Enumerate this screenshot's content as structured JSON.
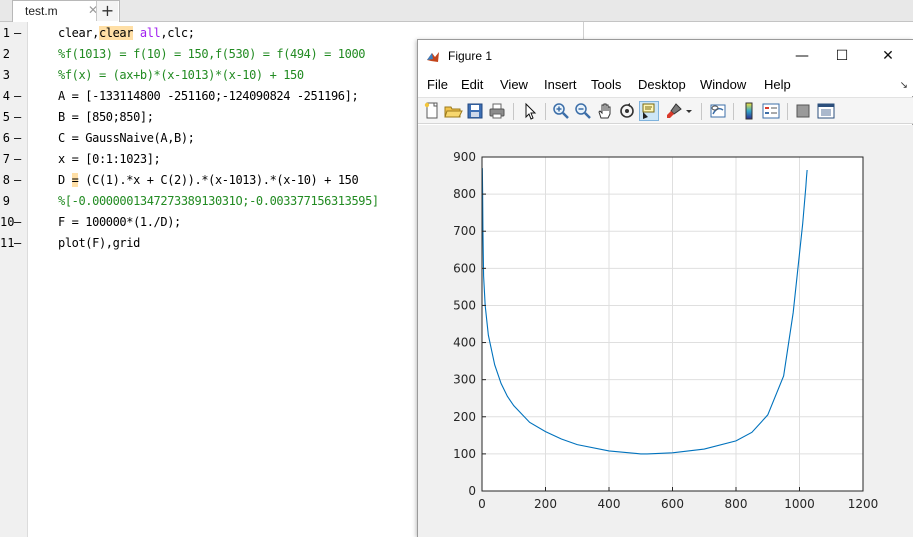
{
  "editor": {
    "tab_label": "test.m",
    "tab_close": "✕",
    "add_tab": "+",
    "lines": [
      {
        "n": "1",
        "dash": true,
        "segments": [
          {
            "t": "clear,",
            "c": ""
          },
          {
            "t": "clear",
            "c": "hl"
          },
          {
            "t": " ",
            "c": ""
          },
          {
            "t": "all",
            "c": "kw"
          },
          {
            "t": ",clc;",
            "c": ""
          }
        ]
      },
      {
        "n": "2",
        "dash": false,
        "segments": [
          {
            "t": "%f(1013) = f(10) = 150,f(530) = f(494) = 1000",
            "c": "cm"
          }
        ]
      },
      {
        "n": "3",
        "dash": false,
        "segments": [
          {
            "t": "%f(x) = (ax+b)*(x-1013)*(x-10) + 150",
            "c": "cm"
          }
        ]
      },
      {
        "n": "4",
        "dash": true,
        "segments": [
          {
            "t": "A = [-133114800 -251160;-124090824 -251196];",
            "c": ""
          }
        ]
      },
      {
        "n": "5",
        "dash": true,
        "segments": [
          {
            "t": "B = [850;850];",
            "c": ""
          }
        ]
      },
      {
        "n": "6",
        "dash": true,
        "segments": [
          {
            "t": "C = GaussNaive(A,B);",
            "c": ""
          }
        ]
      },
      {
        "n": "7",
        "dash": true,
        "segments": [
          {
            "t": "x = [0:1:1023];",
            "c": ""
          }
        ]
      },
      {
        "n": "8",
        "dash": true,
        "segments": [
          {
            "t": "D ",
            "c": ""
          },
          {
            "t": "=",
            "c": "hl"
          },
          {
            "t": " (C(1).*x + C(2)).*(x-1013).*(x-10) + 150",
            "c": ""
          }
        ]
      },
      {
        "n": "9",
        "dash": false,
        "segments": [
          {
            "t": "%[-0.000000134727338913031O;-0.003377156313595]",
            "c": "cm"
          }
        ]
      },
      {
        "n": "10",
        "dash": true,
        "segments": [
          {
            "t": "F = 100000*(1./D);",
            "c": ""
          }
        ]
      },
      {
        "n": "11",
        "dash": true,
        "segments": [
          {
            "t": "plot(F),grid",
            "c": ""
          }
        ]
      }
    ]
  },
  "figure": {
    "title": "Figure 1",
    "window_buttons": {
      "minimize": "—",
      "maximize": "☐",
      "close": "✕"
    },
    "menu": [
      "File",
      "Edit",
      "View",
      "Insert",
      "Tools",
      "Desktop",
      "Window",
      "Help"
    ],
    "dock_arrow": "↘",
    "toolbar": [
      "new-figure",
      "open-file",
      "save",
      "print",
      "sep",
      "select-arrow",
      "sep",
      "zoom-in",
      "zoom-out",
      "pan",
      "rotate-3d",
      "data-cursor",
      "brush",
      "brush-dropdown",
      "sep",
      "link-plot",
      "sep",
      "insert-colorbar",
      "insert-legend",
      "sep",
      "hide-plot-tools",
      "show-plot-tools"
    ],
    "active_tool": "data-cursor"
  },
  "colors": {
    "line": "#0072bd",
    "grid": "#dfdfdf",
    "axes_bg": "#ffffff",
    "figure_bg": "#f0f0f0"
  },
  "chart_data": {
    "type": "line",
    "title": "",
    "xlabel": "",
    "ylabel": "",
    "xlim": [
      0,
      1200
    ],
    "ylim": [
      0,
      900
    ],
    "xticks": [
      0,
      200,
      400,
      600,
      800,
      1000,
      1200
    ],
    "yticks": [
      0,
      100,
      200,
      300,
      400,
      500,
      600,
      700,
      800,
      900
    ],
    "grid": true,
    "series": [
      {
        "name": "",
        "x": [
          1,
          2,
          3,
          5,
          10,
          20,
          40,
          60,
          80,
          100,
          150,
          200,
          250,
          300,
          400,
          500,
          520,
          600,
          700,
          800,
          850,
          900,
          950,
          980,
          1000,
          1010,
          1015,
          1020,
          1022,
          1024
        ],
        "y": [
          870,
          800,
          700,
          580,
          500,
          420,
          340,
          290,
          255,
          230,
          185,
          160,
          140,
          125,
          108,
          100,
          100,
          103,
          113,
          135,
          158,
          205,
          310,
          480,
          640,
          720,
          770,
          820,
          845,
          865
        ]
      }
    ]
  }
}
